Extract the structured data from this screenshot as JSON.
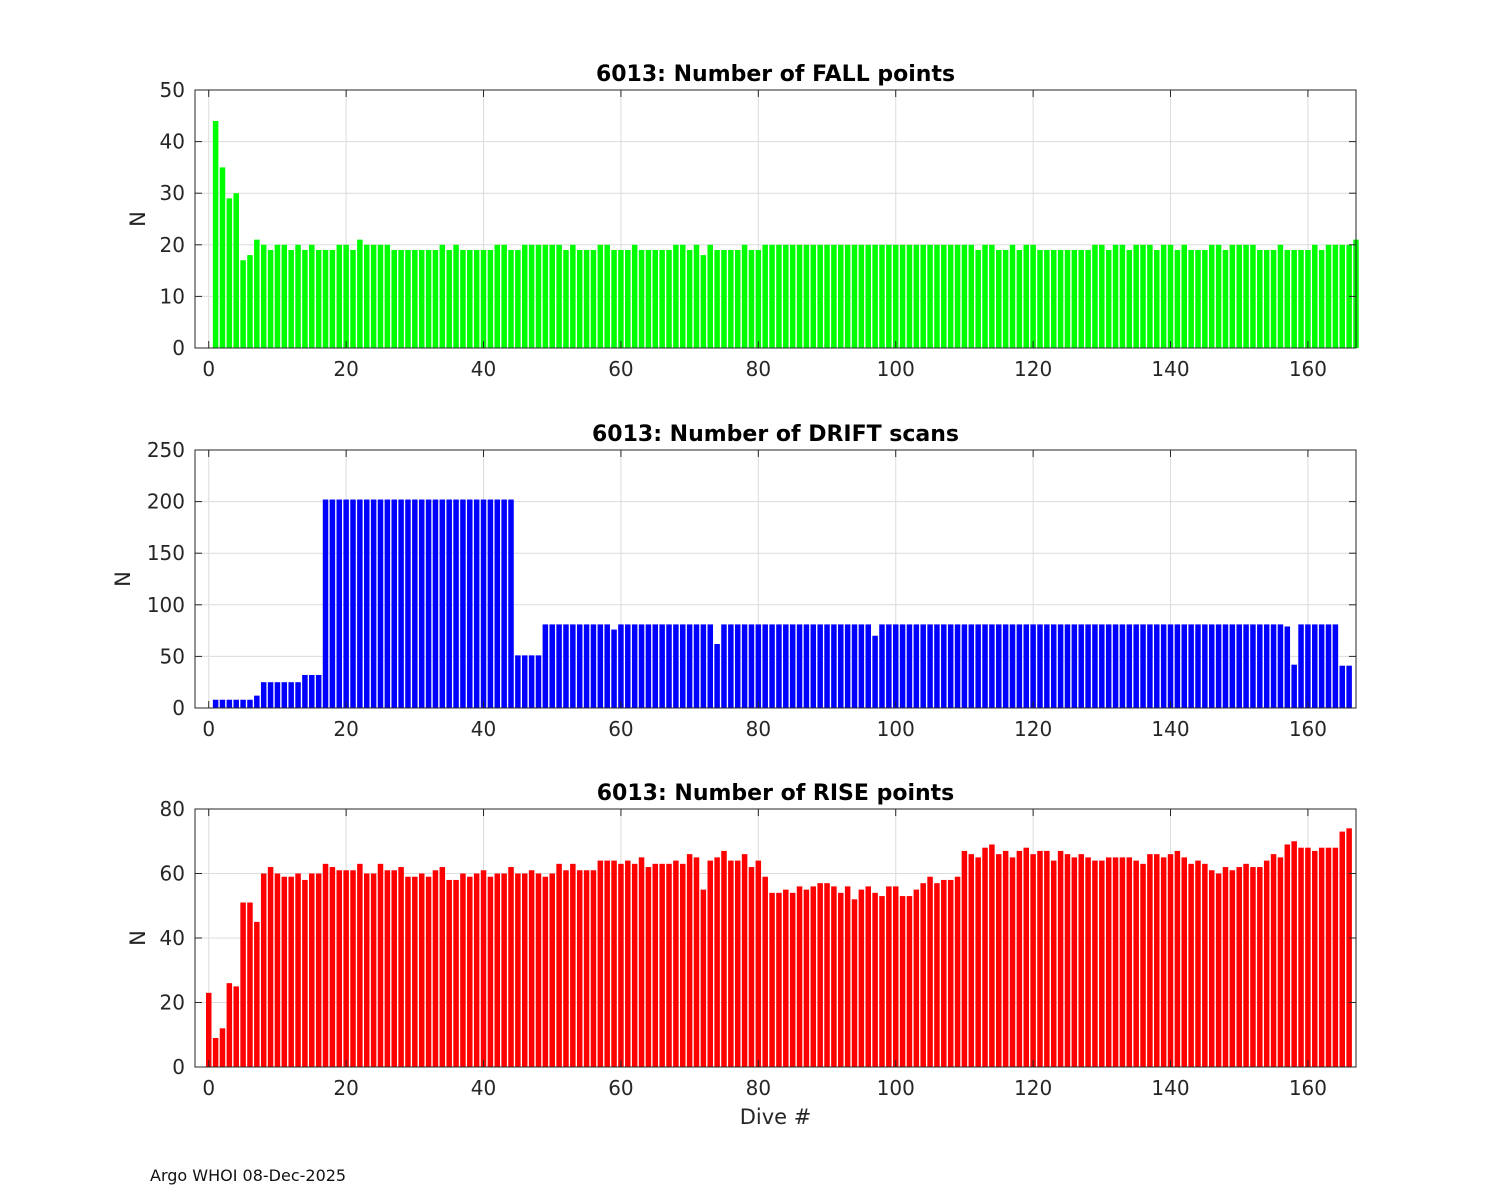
{
  "footer": "Argo WHOI 08-Dec-2025",
  "chart_data": [
    {
      "type": "bar",
      "title": "6013: Number of FALL points",
      "xlabel": "",
      "ylabel": "N",
      "color": "#00ff00",
      "xlim": [
        -2,
        167
      ],
      "ylim": [
        0,
        50
      ],
      "xticks": [
        0,
        20,
        40,
        60,
        80,
        100,
        120,
        140,
        160
      ],
      "yticks": [
        0,
        10,
        20,
        30,
        40,
        50
      ],
      "grid": true,
      "x_start": 1,
      "values": [
        44,
        35,
        29,
        30,
        17,
        18,
        21,
        20,
        19,
        20,
        20,
        19,
        20,
        19,
        20,
        19,
        19,
        19,
        20,
        20,
        19,
        21,
        20,
        20,
        20,
        20,
        19,
        19,
        19,
        19,
        19,
        19,
        19,
        20,
        19,
        20,
        19,
        19,
        19,
        19,
        19,
        20,
        20,
        19,
        19,
        20,
        20,
        20,
        20,
        20,
        20,
        19,
        20,
        19,
        19,
        19,
        20,
        20,
        19,
        19,
        19,
        20,
        19,
        19,
        19,
        19,
        19,
        20,
        20,
        19,
        20,
        18,
        20,
        19,
        19,
        19,
        19,
        20,
        19,
        19,
        20,
        20,
        20,
        20,
        20,
        20,
        20,
        20,
        20,
        20,
        20,
        20,
        20,
        20,
        20,
        20,
        20,
        20,
        20,
        20,
        20,
        20,
        20,
        20,
        20,
        20,
        20,
        20,
        20,
        20,
        20,
        19,
        20,
        20,
        19,
        19,
        20,
        19,
        20,
        20,
        19,
        19,
        19,
        19,
        19,
        19,
        19,
        19,
        20,
        20,
        19,
        20,
        20,
        19,
        20,
        20,
        20,
        19,
        20,
        20,
        19,
        20,
        19,
        19,
        19,
        20,
        20,
        19,
        20,
        20,
        20,
        20,
        19,
        19,
        19,
        20,
        19,
        19,
        19,
        19,
        20,
        19,
        20,
        20,
        20,
        20,
        21
      ]
    },
    {
      "type": "bar",
      "title": "6013: Number of DRIFT scans",
      "xlabel": "",
      "ylabel": "N",
      "color": "#0000ff",
      "xlim": [
        -2,
        167
      ],
      "ylim": [
        0,
        250
      ],
      "xticks": [
        0,
        20,
        40,
        60,
        80,
        100,
        120,
        140,
        160
      ],
      "yticks": [
        0,
        50,
        100,
        150,
        200,
        250
      ],
      "grid": true,
      "x_start": 1,
      "values": [
        8,
        8,
        8,
        8,
        8,
        8,
        12,
        25,
        25,
        25,
        25,
        25,
        25,
        32,
        32,
        32,
        202,
        202,
        202,
        202,
        202,
        202,
        202,
        202,
        202,
        202,
        202,
        202,
        202,
        202,
        202,
        202,
        202,
        202,
        202,
        202,
        202,
        202,
        202,
        202,
        202,
        202,
        202,
        202,
        51,
        51,
        51,
        51,
        81,
        81,
        81,
        81,
        81,
        81,
        81,
        81,
        81,
        81,
        76,
        81,
        81,
        81,
        81,
        81,
        81,
        81,
        81,
        81,
        81,
        81,
        81,
        81,
        81,
        62,
        81,
        81,
        81,
        81,
        81,
        81,
        81,
        81,
        81,
        81,
        81,
        81,
        81,
        81,
        81,
        81,
        81,
        81,
        81,
        81,
        81,
        81,
        70,
        81,
        81,
        81,
        81,
        81,
        81,
        81,
        81,
        81,
        81,
        81,
        81,
        81,
        81,
        81,
        81,
        81,
        81,
        81,
        81,
        81,
        81,
        81,
        81,
        81,
        81,
        81,
        81,
        81,
        81,
        81,
        81,
        81,
        81,
        81,
        81,
        81,
        81,
        81,
        81,
        81,
        81,
        81,
        81,
        81,
        81,
        81,
        81,
        81,
        81,
        81,
        81,
        81,
        81,
        81,
        81,
        81,
        81,
        81,
        79,
        42,
        81,
        81,
        81,
        81,
        81,
        81,
        41,
        41
      ]
    },
    {
      "type": "bar",
      "title": "6013: Number of RISE points",
      "xlabel": "Dive #",
      "ylabel": "N",
      "color": "#ff0000",
      "xlim": [
        -2,
        167
      ],
      "ylim": [
        0,
        80
      ],
      "xticks": [
        0,
        20,
        40,
        60,
        80,
        100,
        120,
        140,
        160
      ],
      "yticks": [
        0,
        20,
        40,
        60,
        80
      ],
      "grid": true,
      "x_start": 0,
      "values": [
        23,
        9,
        12,
        26,
        25,
        51,
        51,
        45,
        60,
        62,
        60,
        59,
        59,
        60,
        58,
        60,
        60,
        63,
        62,
        61,
        61,
        61,
        63,
        60,
        60,
        63,
        61,
        61,
        62,
        59,
        59,
        60,
        59,
        61,
        62,
        58,
        58,
        60,
        59,
        60,
        61,
        59,
        60,
        60,
        62,
        60,
        60,
        61,
        60,
        59,
        60,
        63,
        61,
        63,
        61,
        61,
        61,
        64,
        64,
        64,
        63,
        64,
        63,
        65,
        62,
        63,
        63,
        63,
        64,
        63,
        66,
        65,
        55,
        64,
        65,
        67,
        64,
        64,
        66,
        62,
        64,
        59,
        54,
        54,
        55,
        54,
        56,
        55,
        56,
        57,
        57,
        56,
        54,
        56,
        52,
        55,
        56,
        54,
        53,
        56,
        56,
        53,
        53,
        55,
        57,
        59,
        57,
        58,
        58,
        59,
        67,
        66,
        65,
        68,
        69,
        66,
        67,
        65,
        67,
        68,
        66,
        67,
        67,
        64,
        67,
        66,
        65,
        66,
        65,
        64,
        64,
        65,
        65,
        65,
        65,
        64,
        63,
        66,
        66,
        65,
        66,
        67,
        65,
        63,
        64,
        63,
        61,
        60,
        62,
        61,
        62,
        63,
        62,
        62,
        64,
        66,
        65,
        69,
        70,
        68,
        68,
        67,
        68,
        68,
        68,
        73,
        74
      ]
    }
  ]
}
